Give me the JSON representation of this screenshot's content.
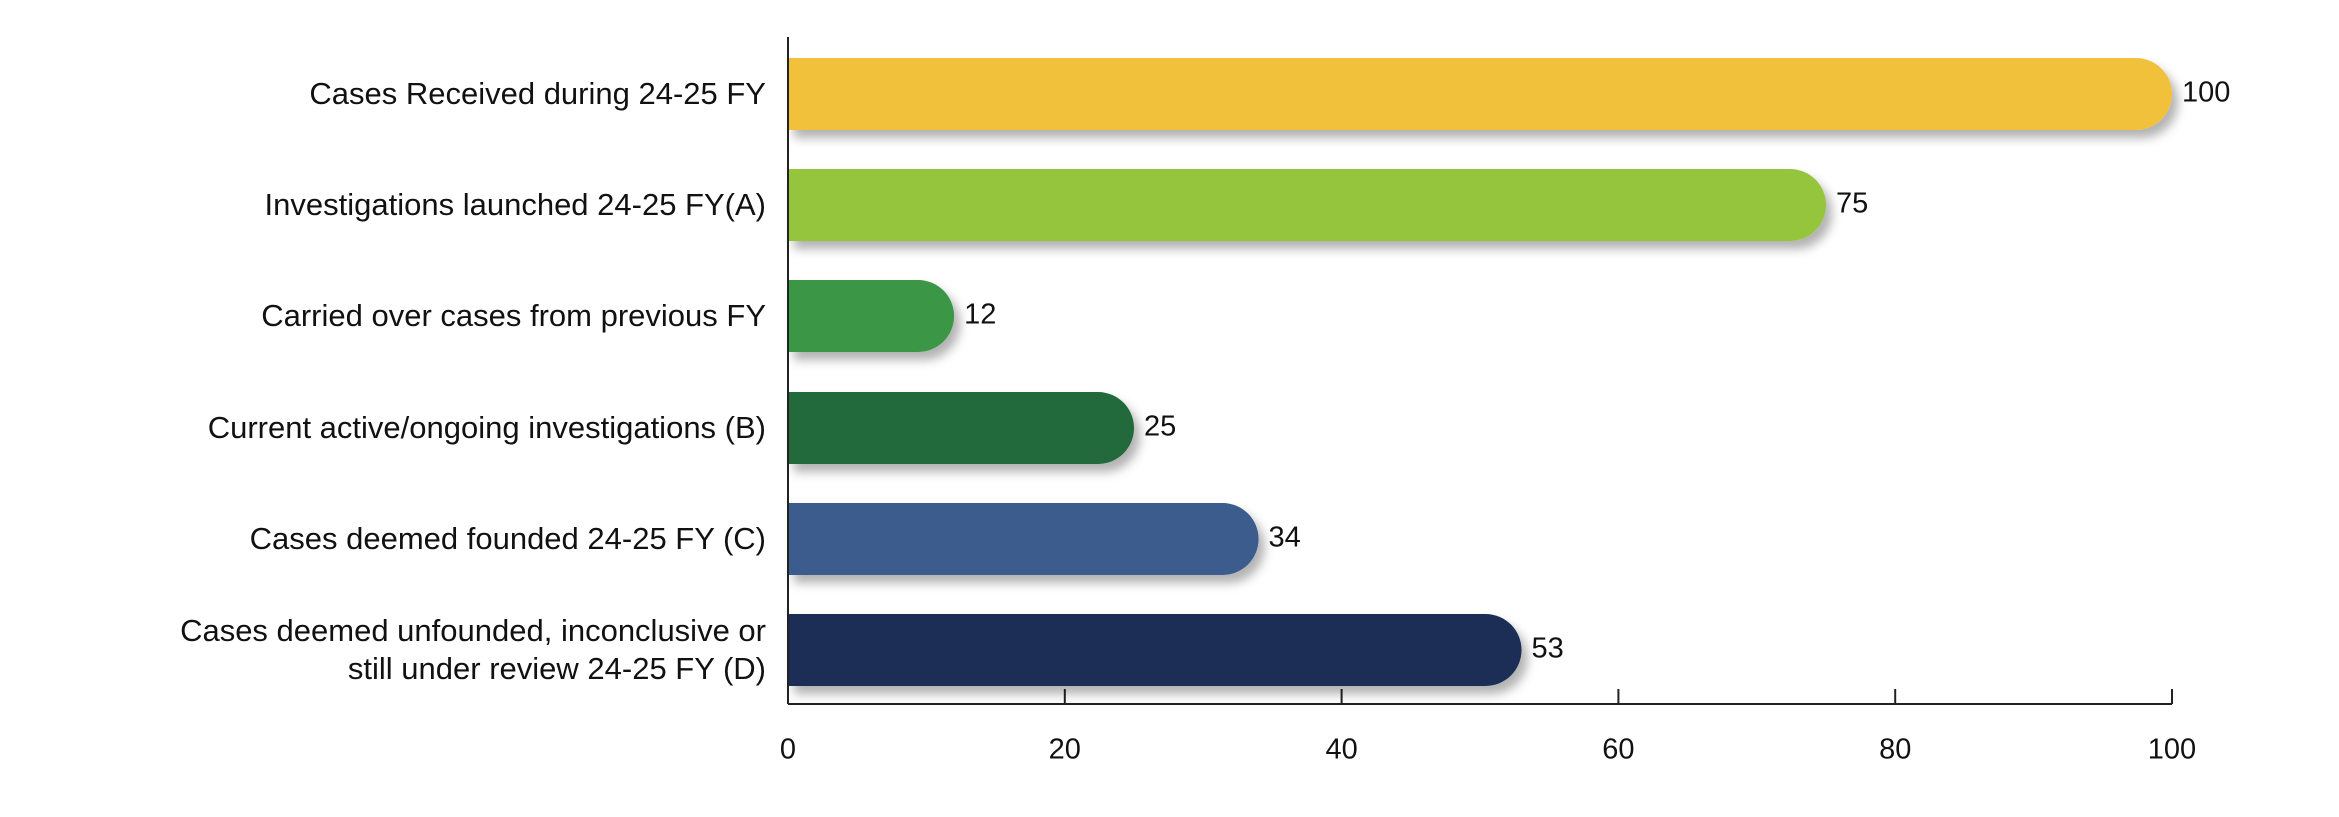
{
  "chart_data": {
    "type": "barh",
    "categories": [
      "Cases Received during 24-25 FY",
      "Investigations launched 24-25 FY(A)",
      "Carried over cases from previous FY",
      "Current active/ongoing investigations (B)",
      "Cases deemed founded 24-25 FY (C)",
      "Cases deemed unfounded, inconclusive or\nstill under review 24-25 FY (D)"
    ],
    "values": [
      100,
      75,
      12,
      25,
      34,
      53
    ],
    "colors": [
      "#f2c13a",
      "#95c43d",
      "#3a9645",
      "#246b3a",
      "#3b5b8c",
      "#1e2f54"
    ],
    "xlim": [
      0,
      100
    ],
    "xticks": [
      0,
      20,
      40,
      60,
      80,
      100
    ]
  }
}
